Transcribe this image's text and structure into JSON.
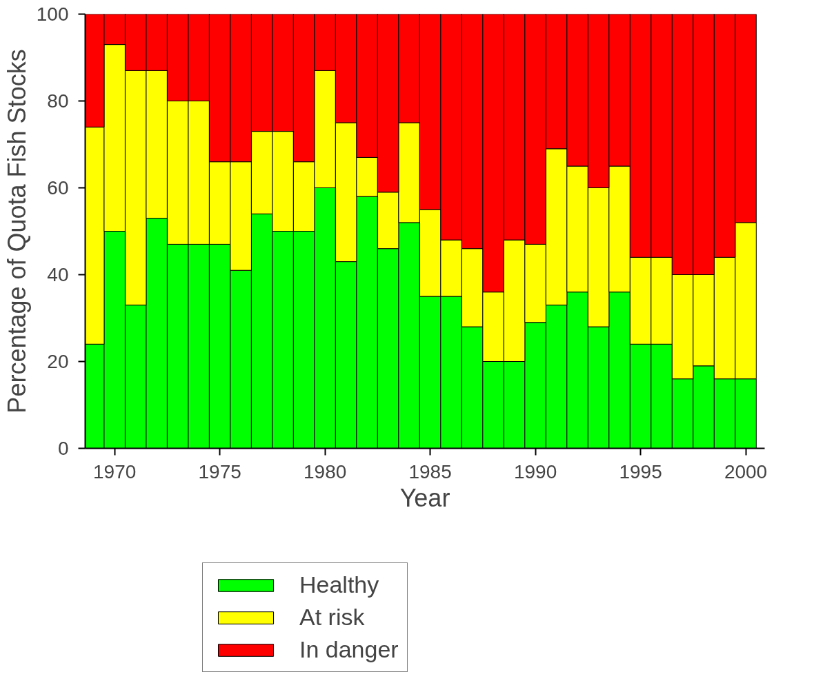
{
  "chart_data": {
    "type": "bar",
    "stacked": true,
    "xlabel": "Year",
    "ylabel": "Percentage of Quota Fish Stocks",
    "x": [
      1969,
      1970,
      1971,
      1972,
      1973,
      1974,
      1975,
      1976,
      1977,
      1978,
      1979,
      1980,
      1981,
      1982,
      1983,
      1984,
      1985,
      1986,
      1987,
      1988,
      1989,
      1990,
      1991,
      1992,
      1993,
      1994,
      1995,
      1996,
      1997,
      1998,
      1999,
      2000
    ],
    "series": [
      {
        "name": "Healthy",
        "color": "#00ff00",
        "values": [
          24,
          50,
          33,
          53,
          47,
          47,
          47,
          41,
          54,
          50,
          50,
          60,
          43,
          58,
          46,
          52,
          35,
          35,
          28,
          20,
          20,
          29,
          33,
          36,
          28,
          36,
          24,
          24,
          16,
          19,
          16,
          16
        ]
      },
      {
        "name": "At risk",
        "color": "#ffff00",
        "values": [
          50,
          43,
          54,
          34,
          33,
          33,
          19,
          25,
          19,
          23,
          16,
          27,
          32,
          9,
          13,
          23,
          20,
          13,
          18,
          16,
          28,
          18,
          36,
          29,
          32,
          29,
          20,
          20,
          24,
          21,
          28,
          36
        ]
      },
      {
        "name": "In danger",
        "color": "#ff0000",
        "values": [
          26,
          7,
          13,
          13,
          20,
          20,
          34,
          34,
          27,
          27,
          34,
          13,
          25,
          33,
          41,
          25,
          45,
          52,
          54,
          64,
          52,
          53,
          31,
          35,
          40,
          35,
          56,
          56,
          60,
          60,
          56,
          48
        ]
      }
    ],
    "xlim": [
      1968.6,
      2000.9
    ],
    "xticks": [
      1970,
      1975,
      1980,
      1985,
      1990,
      1995,
      2000
    ],
    "ylim": [
      0,
      100
    ],
    "yticks": [
      0,
      20,
      40,
      60,
      80,
      100
    ],
    "grid": false,
    "legend": "bottom left"
  }
}
